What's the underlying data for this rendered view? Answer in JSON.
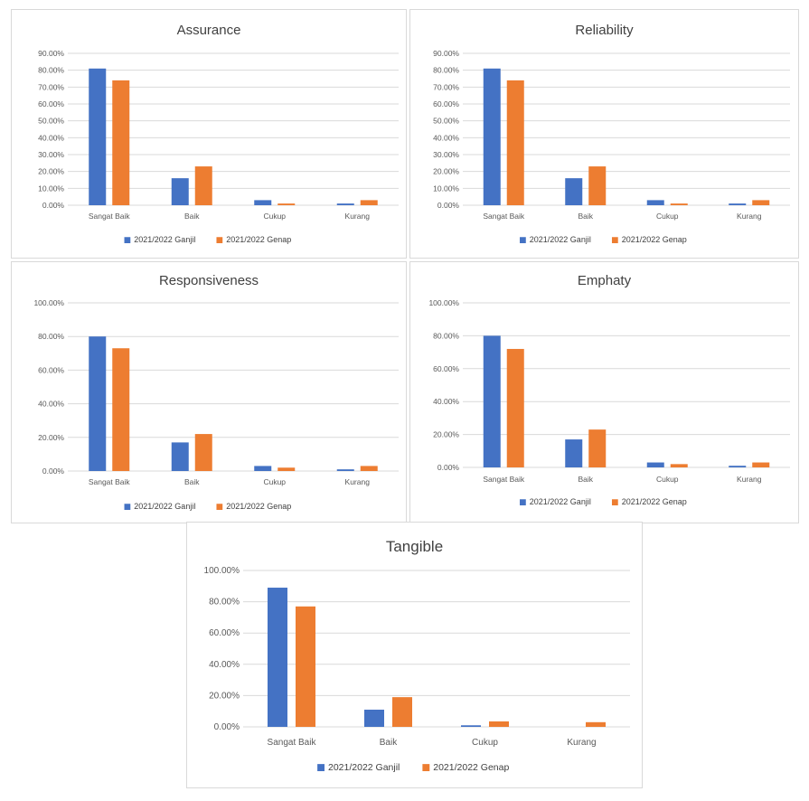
{
  "colors": {
    "ganjil": "#4472C4",
    "genap": "#ED7D31",
    "grid": "#d9d9d9"
  },
  "chart_data": [
    {
      "type": "bar",
      "title": "Assurance",
      "categories": [
        "Sangat Baik",
        "Baik",
        "Cukup",
        "Kurang"
      ],
      "series": [
        {
          "name": "2021/2022 Ganjil",
          "values": [
            0.81,
            0.16,
            0.03,
            0.01
          ]
        },
        {
          "name": "2021/2022 Genap",
          "values": [
            0.74,
            0.23,
            0.01,
            0.03
          ]
        }
      ],
      "ylim": [
        0,
        0.9
      ],
      "yticks": [
        "0.00%",
        "10.00%",
        "20.00%",
        "30.00%",
        "40.00%",
        "50.00%",
        "60.00%",
        "70.00%",
        "80.00%",
        "90.00%"
      ],
      "legend": "bottom",
      "grid": true
    },
    {
      "type": "bar",
      "title": "Reliability",
      "categories": [
        "Sangat Baik",
        "Baik",
        "Cukup",
        "Kurang"
      ],
      "series": [
        {
          "name": "2021/2022 Ganjil",
          "values": [
            0.81,
            0.16,
            0.03,
            0.01
          ]
        },
        {
          "name": "2021/2022 Genap",
          "values": [
            0.74,
            0.23,
            0.01,
            0.03
          ]
        }
      ],
      "ylim": [
        0,
        0.9
      ],
      "yticks": [
        "0.00%",
        "10.00%",
        "20.00%",
        "30.00%",
        "40.00%",
        "50.00%",
        "60.00%",
        "70.00%",
        "80.00%",
        "90.00%"
      ],
      "legend": "bottom",
      "grid": true
    },
    {
      "type": "bar",
      "title": "Responsiveness",
      "categories": [
        "Sangat Baik",
        "Baik",
        "Cukup",
        "Kurang"
      ],
      "series": [
        {
          "name": "2021/2022 Ganjil",
          "values": [
            0.8,
            0.17,
            0.03,
            0.01
          ]
        },
        {
          "name": "2021/2022 Genap",
          "values": [
            0.73,
            0.22,
            0.02,
            0.03
          ]
        }
      ],
      "ylim": [
        0,
        1.0
      ],
      "yticks": [
        "0.00%",
        "20.00%",
        "40.00%",
        "60.00%",
        "80.00%",
        "100.00%"
      ],
      "legend": "bottom",
      "grid": true
    },
    {
      "type": "bar",
      "title": "Emphaty",
      "categories": [
        "Sangat Baik",
        "Baik",
        "Cukup",
        "Kurang"
      ],
      "series": [
        {
          "name": "2021/2022 Ganjil",
          "values": [
            0.8,
            0.17,
            0.03,
            0.01
          ]
        },
        {
          "name": "2021/2022 Genap",
          "values": [
            0.72,
            0.23,
            0.02,
            0.03
          ]
        }
      ],
      "ylim": [
        0,
        1.0
      ],
      "yticks": [
        "0.00%",
        "20.00%",
        "40.00%",
        "60.00%",
        "80.00%",
        "100.00%"
      ],
      "legend": "bottom",
      "grid": true
    },
    {
      "type": "bar",
      "title": "Tangible",
      "categories": [
        "Sangat Baik",
        "Baik",
        "Cukup",
        "Kurang"
      ],
      "series": [
        {
          "name": "2021/2022 Ganjil",
          "values": [
            0.89,
            0.11,
            0.01,
            0.0
          ]
        },
        {
          "name": "2021/2022 Genap",
          "values": [
            0.77,
            0.19,
            0.035,
            0.03
          ]
        }
      ],
      "ylim": [
        0,
        1.0
      ],
      "yticks": [
        "0.00%",
        "20.00%",
        "40.00%",
        "60.00%",
        "80.00%",
        "100.00%"
      ],
      "legend": "bottom",
      "grid": true
    }
  ]
}
